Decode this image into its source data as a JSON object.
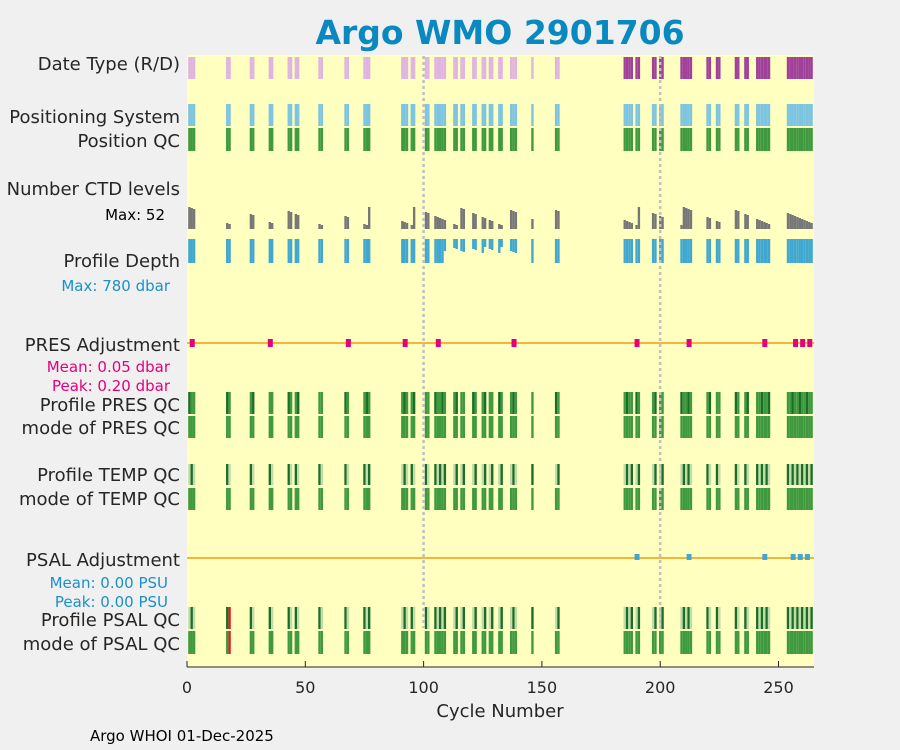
{
  "title": "Argo WMO 2901706",
  "footer": "Argo WHOI 01-Dec-2025",
  "colors": {
    "title": "#0a88c0",
    "plot_bg": "#ffffc0",
    "page_bg": "#f0f0f0",
    "magenta_text": "#e4007c",
    "blue_text": "#1a90c8",
    "orange_line": "#f5b43c",
    "date_light": "#e0b4e0",
    "date_dark": "#a0409a",
    "pos_sys": "#7cc4e0",
    "qc_green": "#3f9a3f",
    "qc_dark": "#1a6e28",
    "qc_light": "#c0dca8",
    "ctd_gray": "#777777",
    "depth_blue": "#40a8d0",
    "adj_magenta": "#e4007c",
    "adj_blue": "#40a8d0",
    "qc_red": "#e02020",
    "qc_yellow": "#e8e838",
    "vline": "#c0c0c0"
  },
  "rows": {
    "date_type": "Date Type (R/D)",
    "positioning_system": "Positioning System",
    "position_qc": "Position QC",
    "number_ctd_levels": "Number CTD levels",
    "ctd_max": "Max: 52",
    "profile_depth": "Profile Depth",
    "depth_max": "Max:  780 dbar",
    "pres_adjustment": "PRES Adjustment",
    "pres_mean": "Mean: 0.05 dbar",
    "pres_peak": "Peak: 0.20 dbar",
    "profile_pres_qc": "Profile PRES QC",
    "mode_pres_qc": "mode of PRES QC",
    "profile_temp_qc": "Profile TEMP QC",
    "mode_temp_qc": "mode of TEMP QC",
    "psal_adjustment": "PSAL Adjustment",
    "psal_mean": "Mean: 0.00 PSU",
    "psal_peak": "Peak: 0.00 PSU",
    "profile_psal_qc": "Profile PSAL QC",
    "mode_psal_qc": "mode of PSAL QC"
  },
  "chart_data": {
    "type": "heatmap",
    "title": "Argo WMO 2901706",
    "xlabel": "Cycle Number",
    "xlim": [
      0,
      265
    ],
    "xticks": [
      0,
      50,
      100,
      150,
      200,
      250
    ],
    "vlines": [
      100,
      200
    ],
    "cycles": [
      1,
      2,
      3,
      17,
      18,
      27,
      28,
      35,
      36,
      43,
      44,
      46,
      47,
      56,
      57,
      67,
      68,
      75,
      76,
      77,
      91,
      92,
      93,
      95,
      96,
      101,
      102,
      105,
      106,
      107,
      108,
      109,
      113,
      114,
      116,
      117,
      121,
      122,
      125,
      126,
      128,
      129,
      132,
      133,
      137,
      138,
      139,
      146,
      156,
      157,
      185,
      186,
      187,
      188,
      190,
      191,
      197,
      198,
      200,
      201,
      209,
      210,
      211,
      212,
      213,
      220,
      221,
      224,
      225,
      232,
      233,
      236,
      237,
      241,
      242,
      243,
      244,
      245,
      246,
      254,
      255,
      256,
      257,
      258,
      259,
      260,
      261,
      262,
      263,
      264
    ],
    "date_dark_from_cycle": 185,
    "ctd_max_levels": 52,
    "depth_max_dbar": 780,
    "pres_adjustment": {
      "mean_dbar": 0.05,
      "peak_dbar": 0.2
    },
    "psal_adjustment": {
      "mean_psu": 0.0,
      "peak_psu": 0.0
    }
  }
}
